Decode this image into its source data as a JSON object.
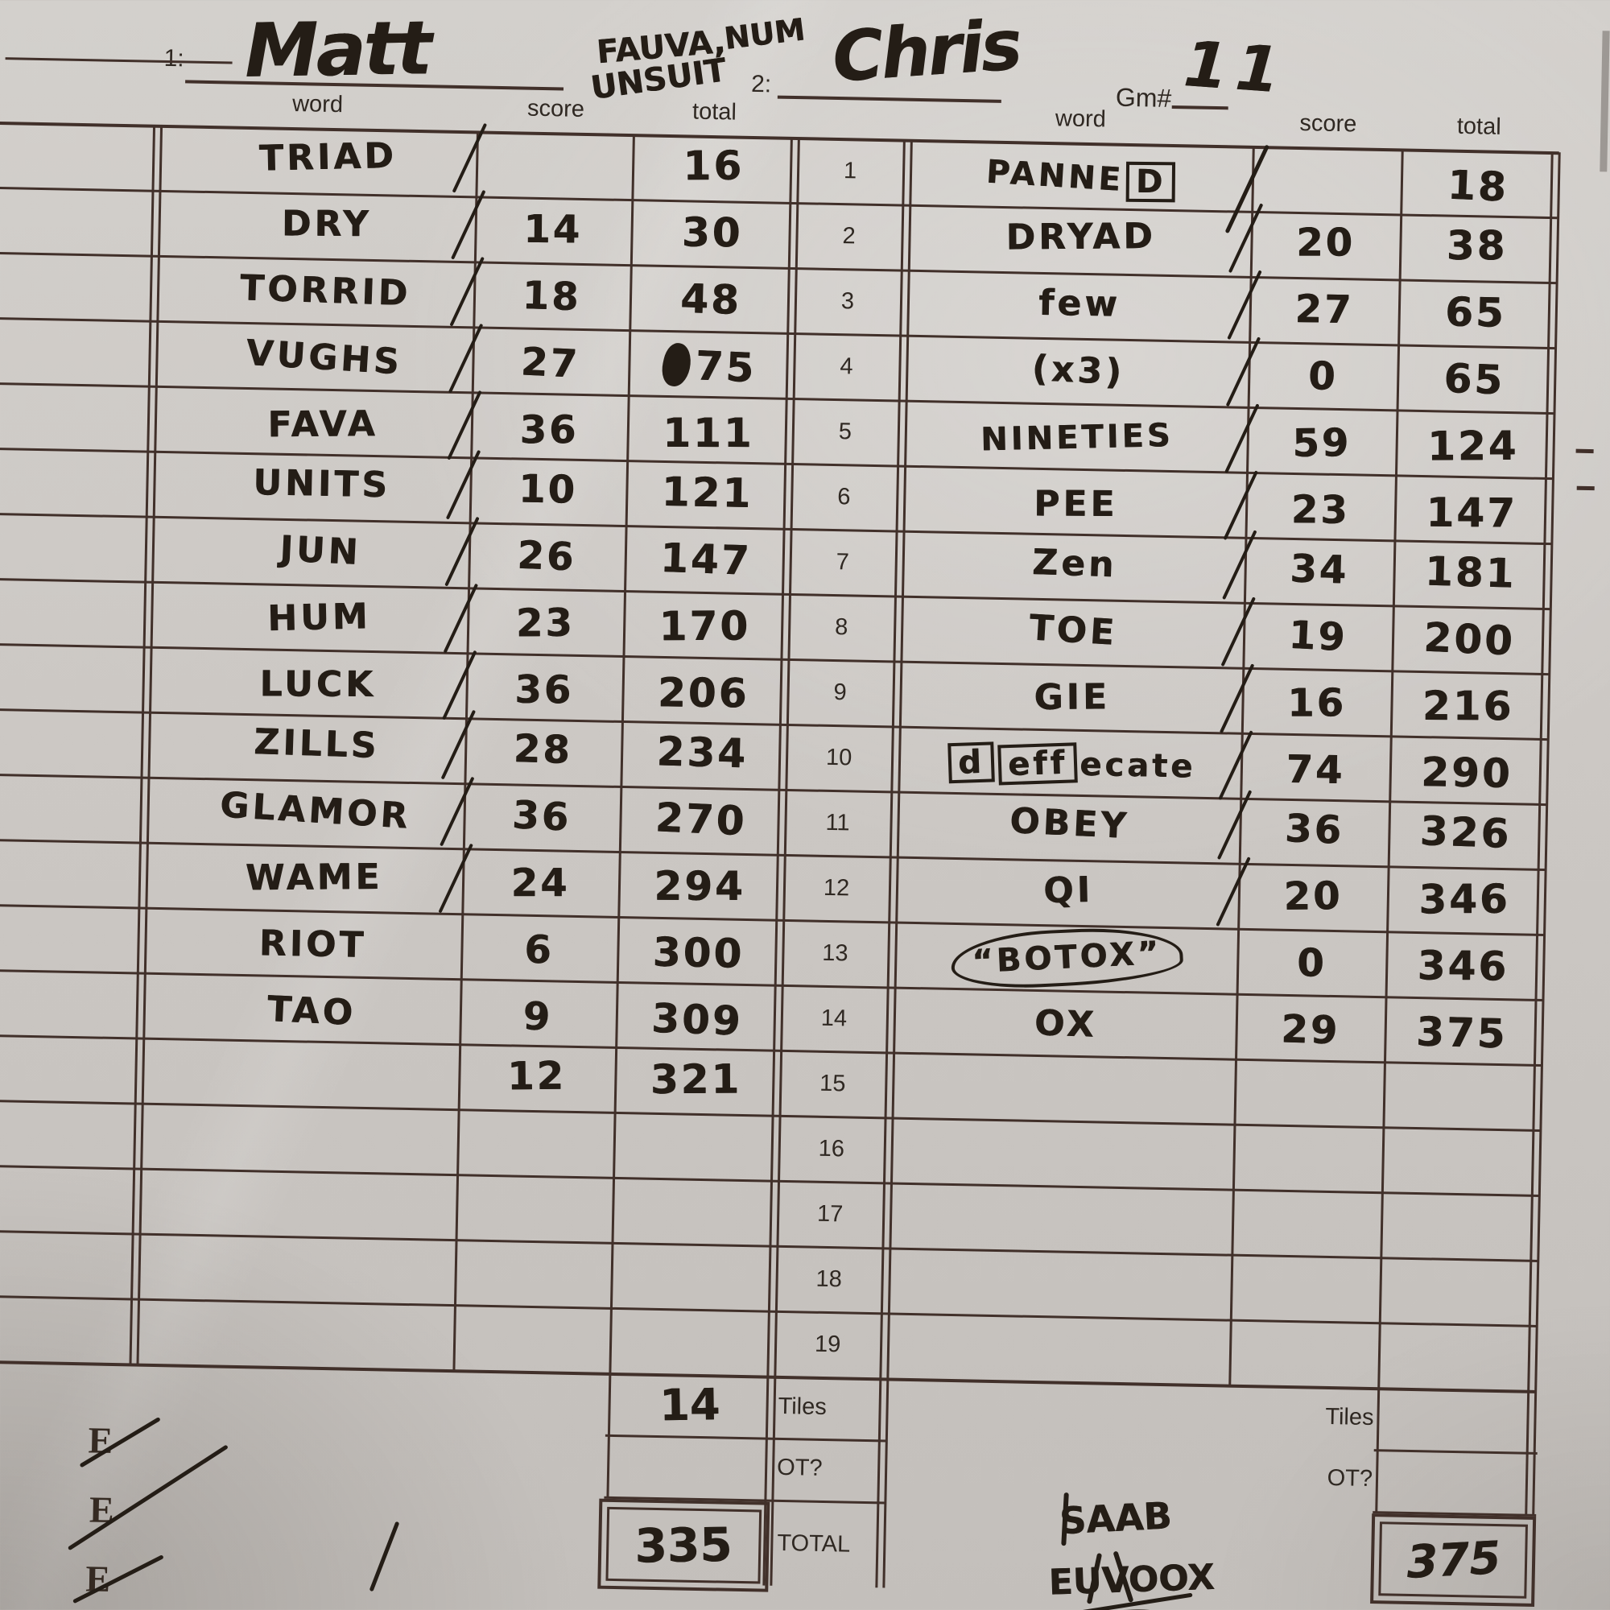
{
  "form": {
    "player1_label": "1:",
    "player2_label": "2:",
    "game_label": "Gm#",
    "col_word": "word",
    "col_score": "score",
    "col_total": "total",
    "tiles_label": "Tiles",
    "ot_label": "OT?",
    "total_label": "TOTAL",
    "row_numbers": [
      "1",
      "2",
      "3",
      "4",
      "5",
      "6",
      "7",
      "8",
      "9",
      "10",
      "11",
      "12",
      "13",
      "14",
      "15",
      "16",
      "17",
      "18",
      "19"
    ]
  },
  "handwritten": {
    "player1_name": "Matt",
    "player2_name": "Chris",
    "game_number": "11",
    "top_annotations": [
      "FAUVA,",
      "NUM",
      "UNSUIT"
    ],
    "bottom_scribble_line1": "SAAB",
    "bottom_scribble_line2": "EUVOOX",
    "struck_letters": [
      "E",
      "E",
      "E"
    ]
  },
  "player1": {
    "tiles": "14",
    "ot": "",
    "total": "335",
    "rows": [
      {
        "word": "TRIAD",
        "score": "",
        "total": "16",
        "slash": true
      },
      {
        "word": "DRY",
        "score": "14",
        "total": "30",
        "slash": true
      },
      {
        "word": "TORRID",
        "score": "18",
        "total": "48",
        "slash": true
      },
      {
        "word": "VUGHS",
        "score": "27",
        "total": "75",
        "slash": true,
        "total_scribble": true
      },
      {
        "word": "FAVA",
        "score": "36",
        "total": "111",
        "slash": true
      },
      {
        "word": "UNITS",
        "score": "10",
        "total": "121",
        "slash": true
      },
      {
        "word": "JUN",
        "score": "26",
        "total": "147",
        "slash": true
      },
      {
        "word": "HUM",
        "score": "23",
        "total": "170",
        "slash": true
      },
      {
        "word": "LUCK",
        "score": "36",
        "total": "206",
        "slash": true
      },
      {
        "word": "ZILLS",
        "score": "28",
        "total": "234",
        "slash": true
      },
      {
        "word": "GLAMOR",
        "score": "36",
        "total": "270",
        "slash": true
      },
      {
        "word": "WAME",
        "score": "24",
        "total": "294",
        "slash": true
      },
      {
        "word": "RIOT",
        "score": "6",
        "total": "300"
      },
      {
        "word": "TAO",
        "score": "9",
        "total": "309"
      },
      {
        "word": "",
        "score": "12",
        "total": "321"
      },
      {},
      {},
      {},
      {}
    ]
  },
  "player2": {
    "tiles": "",
    "ot": "",
    "total": "375",
    "rows": [
      {
        "word_parts": [
          {
            "text": "PANNE"
          },
          {
            "text": "D",
            "boxed": true
          }
        ],
        "score": "",
        "total": "18",
        "slash": true,
        "slash_big": true
      },
      {
        "word": "DRYAD",
        "score": "20",
        "total": "38",
        "slash": true
      },
      {
        "word": "few",
        "score": "27",
        "total": "65",
        "slash": true
      },
      {
        "word": "(x3)",
        "score": "0",
        "total": "65",
        "slash": true
      },
      {
        "word": "NINETIES",
        "score": "59",
        "total": "124",
        "slash": true
      },
      {
        "word": "PEE",
        "score": "23",
        "total": "147",
        "slash": true
      },
      {
        "word": "Zen",
        "score": "34",
        "total": "181",
        "slash": true
      },
      {
        "word": "TOE",
        "score": "19",
        "total": "200",
        "slash": true
      },
      {
        "word": "GIE",
        "score": "16",
        "total": "216",
        "slash": true
      },
      {
        "word_parts": [
          {
            "text": "d",
            "boxed": true
          },
          {
            "text": "eff",
            "boxed": true
          },
          {
            "text": "ecate"
          }
        ],
        "score": "74",
        "total": "290",
        "slash": true
      },
      {
        "word": "OBEY",
        "score": "36",
        "total": "326",
        "slash": true
      },
      {
        "word": "QI",
        "score": "20",
        "total": "346",
        "slash": true
      },
      {
        "word": "“BOTOX”",
        "score": "0",
        "total": "346",
        "circled": true
      },
      {
        "word": "OX",
        "score": "29",
        "total": "375"
      },
      {},
      {},
      {},
      {},
      {}
    ]
  },
  "colors": {
    "paper": "#ccc8c4",
    "line": "#41302a",
    "ink": "#241d16",
    "print": "#2f2822"
  }
}
